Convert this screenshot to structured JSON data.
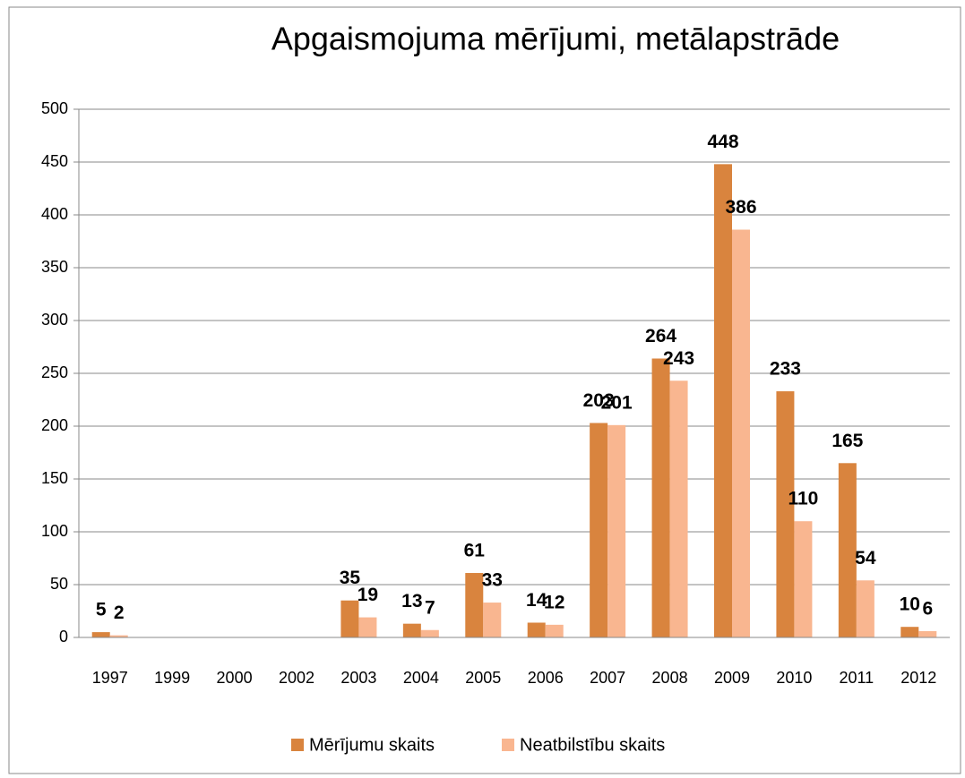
{
  "chart_data": {
    "type": "bar",
    "title": "Apgaismojuma mērījumi, metālapstrāde",
    "categories": [
      "1997",
      "1999",
      "2000",
      "2002",
      "2003",
      "2004",
      "2005",
      "2006",
      "2007",
      "2008",
      "2009",
      "2010",
      "2011",
      "2012"
    ],
    "series": [
      {
        "name": "Mērījumu skaits",
        "color": "#d9843e",
        "values": [
          5,
          null,
          null,
          null,
          35,
          13,
          61,
          14,
          203,
          264,
          448,
          233,
          165,
          10
        ]
      },
      {
        "name": "Neatbilstību skaits",
        "color": "#f9b690",
        "values": [
          2,
          null,
          null,
          null,
          19,
          7,
          33,
          12,
          201,
          243,
          386,
          110,
          54,
          6
        ]
      }
    ],
    "ylim": [
      0,
      500
    ],
    "yticks": [
      0,
      50,
      100,
      150,
      200,
      250,
      300,
      350,
      400,
      450,
      500
    ],
    "grid": true,
    "legend": "bottom"
  }
}
